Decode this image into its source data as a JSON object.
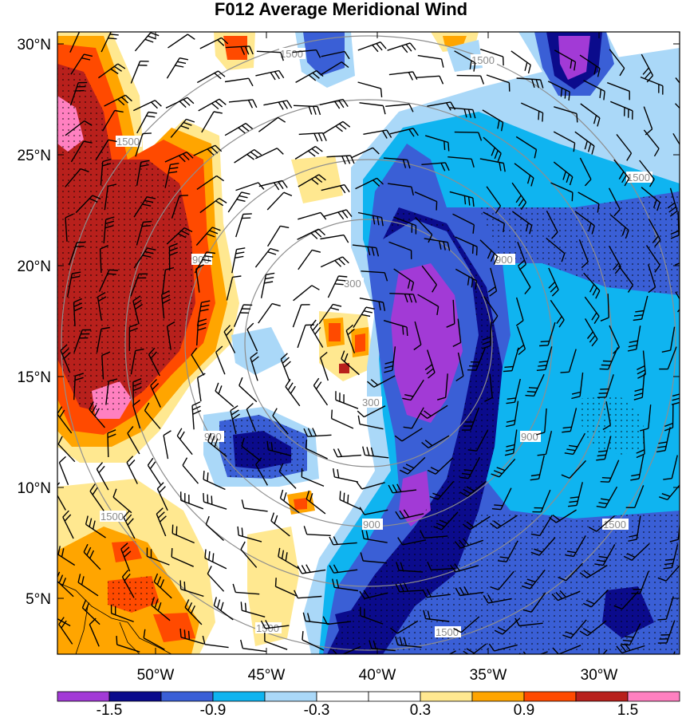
{
  "title": "F012 Average Meridional Wind",
  "lat_labels": [
    "30°N",
    "25°N",
    "20°N",
    "15°N",
    "10°N",
    "5°N"
  ],
  "lon_labels": [
    "50°W",
    "45°W",
    "40°W",
    "35°W",
    "30°W"
  ],
  "ring_labels": [
    "300",
    "900",
    "1500"
  ],
  "colorbar": {
    "colors": [
      "#a23ad6",
      "#0b0b8c",
      "#3a5fd6",
      "#0fb4f0",
      "#aad8f8",
      "#ffffff",
      "#ffffff",
      "#ffe890",
      "#ffa500",
      "#ff4a00",
      "#b8201c",
      "#ff80c0"
    ],
    "labels": [
      "-1.5",
      "-0.9",
      "-0.3",
      "0.3",
      "0.9",
      "1.5"
    ]
  }
}
